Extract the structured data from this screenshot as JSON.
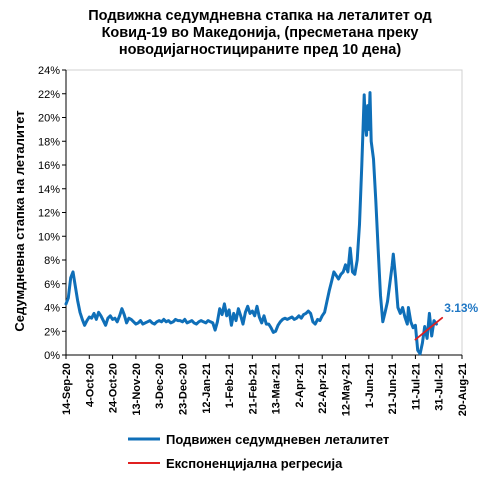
{
  "chart_data": {
    "type": "line",
    "title_lines": [
      "Подвижна седумдневна стапка на леталитет од",
      "Ковид-19 во Македонија, (пресметана преку",
      "новодијагностицираните пред 10 дена)"
    ],
    "xlabel": "",
    "ylabel": "Седумдневна стапка на леталитет",
    "x_range": [
      "2020-09-14",
      "2021-08-20"
    ],
    "x_ticks": [
      "14-Sep-20",
      "4-Oct-20",
      "24-Oct-20",
      "13-Nov-20",
      "3-Dec-20",
      "23-Dec-20",
      "12-Jan-21",
      "1-Feb-21",
      "21-Feb-21",
      "13-Mar-21",
      "2-Apr-21",
      "22-Apr-21",
      "12-May-21",
      "1-Jun-21",
      "21-Jun-21",
      "11-Jul-21",
      "31-Jul-21",
      "20-Aug-21"
    ],
    "y_ticks": [
      "0%",
      "2%",
      "4%",
      "6%",
      "8%",
      "10%",
      "12%",
      "14%",
      "16%",
      "18%",
      "20%",
      "22%",
      "24%"
    ],
    "ylim": [
      0,
      24
    ],
    "grid": false,
    "legend_position": "bottom",
    "colors": {
      "series": "#0f6fb8",
      "trend": "#e02020",
      "annotation": "#1f77c4"
    },
    "series": [
      {
        "name": "Подвижен седумдневен леталитет",
        "color": "#0f6fb8",
        "points": [
          [
            "2020-09-14",
            4.3
          ],
          [
            "2020-09-16",
            4.8
          ],
          [
            "2020-09-18",
            6.5
          ],
          [
            "2020-09-20",
            7.0
          ],
          [
            "2020-09-22",
            5.8
          ],
          [
            "2020-09-24",
            4.6
          ],
          [
            "2020-09-26",
            3.6
          ],
          [
            "2020-09-28",
            3.0
          ],
          [
            "2020-09-30",
            2.5
          ],
          [
            "2020-10-02",
            2.9
          ],
          [
            "2020-10-04",
            3.2
          ],
          [
            "2020-10-06",
            3.1
          ],
          [
            "2020-10-08",
            3.5
          ],
          [
            "2020-10-10",
            3.0
          ],
          [
            "2020-10-12",
            3.6
          ],
          [
            "2020-10-14",
            3.3
          ],
          [
            "2020-10-16",
            2.9
          ],
          [
            "2020-10-18",
            2.5
          ],
          [
            "2020-10-20",
            3.1
          ],
          [
            "2020-10-22",
            3.3
          ],
          [
            "2020-10-24",
            3.0
          ],
          [
            "2020-10-26",
            3.1
          ],
          [
            "2020-10-28",
            2.8
          ],
          [
            "2020-10-30",
            3.3
          ],
          [
            "2020-11-01",
            3.9
          ],
          [
            "2020-11-03",
            3.4
          ],
          [
            "2020-11-05",
            2.7
          ],
          [
            "2020-11-07",
            3.1
          ],
          [
            "2020-11-09",
            3.0
          ],
          [
            "2020-11-11",
            2.8
          ],
          [
            "2020-11-13",
            2.6
          ],
          [
            "2020-11-15",
            2.7
          ],
          [
            "2020-11-17",
            2.9
          ],
          [
            "2020-11-19",
            2.6
          ],
          [
            "2020-11-21",
            2.7
          ],
          [
            "2020-11-23",
            2.8
          ],
          [
            "2020-11-25",
            2.9
          ],
          [
            "2020-11-27",
            2.7
          ],
          [
            "2020-11-29",
            2.6
          ],
          [
            "2020-12-01",
            2.8
          ],
          [
            "2020-12-03",
            2.9
          ],
          [
            "2020-12-05",
            2.8
          ],
          [
            "2020-12-07",
            3.0
          ],
          [
            "2020-12-09",
            2.8
          ],
          [
            "2020-12-11",
            2.9
          ],
          [
            "2020-12-13",
            2.7
          ],
          [
            "2020-12-15",
            2.8
          ],
          [
            "2020-12-17",
            3.0
          ],
          [
            "2020-12-19",
            2.9
          ],
          [
            "2020-12-21",
            2.9
          ],
          [
            "2020-12-23",
            2.8
          ],
          [
            "2020-12-25",
            3.0
          ],
          [
            "2020-12-27",
            2.7
          ],
          [
            "2020-12-29",
            2.8
          ],
          [
            "2020-12-31",
            2.9
          ],
          [
            "2021-01-02",
            2.7
          ],
          [
            "2021-01-04",
            2.6
          ],
          [
            "2021-01-06",
            2.8
          ],
          [
            "2021-01-08",
            2.9
          ],
          [
            "2021-01-10",
            2.8
          ],
          [
            "2021-01-12",
            2.7
          ],
          [
            "2021-01-14",
            2.9
          ],
          [
            "2021-01-16",
            2.8
          ],
          [
            "2021-01-18",
            2.7
          ],
          [
            "2021-01-20",
            2.1
          ],
          [
            "2021-01-22",
            2.8
          ],
          [
            "2021-01-24",
            3.9
          ],
          [
            "2021-01-26",
            3.4
          ],
          [
            "2021-01-28",
            4.3
          ],
          [
            "2021-01-30",
            3.3
          ],
          [
            "2021-02-01",
            3.8
          ],
          [
            "2021-02-03",
            2.5
          ],
          [
            "2021-02-05",
            3.5
          ],
          [
            "2021-02-07",
            2.9
          ],
          [
            "2021-02-09",
            3.9
          ],
          [
            "2021-02-11",
            3.3
          ],
          [
            "2021-02-13",
            2.6
          ],
          [
            "2021-02-15",
            3.6
          ],
          [
            "2021-02-17",
            4.1
          ],
          [
            "2021-02-19",
            3.5
          ],
          [
            "2021-02-21",
            3.7
          ],
          [
            "2021-02-23",
            3.3
          ],
          [
            "2021-02-25",
            4.1
          ],
          [
            "2021-02-27",
            3.2
          ],
          [
            "2021-03-01",
            2.7
          ],
          [
            "2021-03-03",
            3.3
          ],
          [
            "2021-03-05",
            2.6
          ],
          [
            "2021-03-07",
            2.6
          ],
          [
            "2021-03-09",
            2.3
          ],
          [
            "2021-03-11",
            1.9
          ],
          [
            "2021-03-13",
            2.0
          ],
          [
            "2021-03-15",
            2.5
          ],
          [
            "2021-03-17",
            2.8
          ],
          [
            "2021-03-19",
            3.0
          ],
          [
            "2021-03-21",
            3.1
          ],
          [
            "2021-03-23",
            3.0
          ],
          [
            "2021-03-25",
            3.1
          ],
          [
            "2021-03-27",
            3.2
          ],
          [
            "2021-03-29",
            3.0
          ],
          [
            "2021-03-31",
            3.1
          ],
          [
            "2021-04-02",
            3.3
          ],
          [
            "2021-04-04",
            3.1
          ],
          [
            "2021-04-06",
            3.4
          ],
          [
            "2021-04-08",
            3.5
          ],
          [
            "2021-04-10",
            3.7
          ],
          [
            "2021-04-12",
            3.5
          ],
          [
            "2021-04-14",
            2.8
          ],
          [
            "2021-04-16",
            2.6
          ],
          [
            "2021-04-18",
            3.0
          ],
          [
            "2021-04-20",
            2.9
          ],
          [
            "2021-04-22",
            3.3
          ],
          [
            "2021-04-24",
            3.6
          ],
          [
            "2021-04-26",
            4.5
          ],
          [
            "2021-04-28",
            5.4
          ],
          [
            "2021-04-30",
            6.2
          ],
          [
            "2021-05-02",
            7.0
          ],
          [
            "2021-05-04",
            6.7
          ],
          [
            "2021-05-06",
            6.4
          ],
          [
            "2021-05-08",
            6.8
          ],
          [
            "2021-05-10",
            7.0
          ],
          [
            "2021-05-12",
            7.6
          ],
          [
            "2021-05-14",
            7.0
          ],
          [
            "2021-05-16",
            9.0
          ],
          [
            "2021-05-18",
            7.0
          ],
          [
            "2021-05-20",
            6.8
          ],
          [
            "2021-05-22",
            8.0
          ],
          [
            "2021-05-24",
            11.0
          ],
          [
            "2021-05-26",
            16.0
          ],
          [
            "2021-05-28",
            21.9
          ],
          [
            "2021-05-29",
            19.5
          ],
          [
            "2021-05-30",
            18.5
          ],
          [
            "2021-05-31",
            21.0
          ],
          [
            "2021-06-01",
            19.0
          ],
          [
            "2021-06-02",
            22.1
          ],
          [
            "2021-06-03",
            18.0
          ],
          [
            "2021-06-05",
            16.5
          ],
          [
            "2021-06-07",
            13.0
          ],
          [
            "2021-06-09",
            9.0
          ],
          [
            "2021-06-11",
            5.0
          ],
          [
            "2021-06-13",
            2.8
          ],
          [
            "2021-06-15",
            3.6
          ],
          [
            "2021-06-17",
            4.5
          ],
          [
            "2021-06-19",
            6.0
          ],
          [
            "2021-06-21",
            7.5
          ],
          [
            "2021-06-22",
            8.5
          ],
          [
            "2021-06-24",
            6.5
          ],
          [
            "2021-06-26",
            4.0
          ],
          [
            "2021-06-28",
            3.5
          ],
          [
            "2021-06-30",
            4.0
          ],
          [
            "2021-07-02",
            3.2
          ],
          [
            "2021-07-04",
            2.6
          ],
          [
            "2021-07-05",
            4.0
          ],
          [
            "2021-07-07",
            2.8
          ],
          [
            "2021-07-09",
            2.3
          ],
          [
            "2021-07-11",
            2.5
          ],
          [
            "2021-07-13",
            0.4
          ],
          [
            "2021-07-15",
            0.1
          ],
          [
            "2021-07-17",
            1.0
          ],
          [
            "2021-07-19",
            2.4
          ],
          [
            "2021-07-21",
            1.4
          ],
          [
            "2021-07-23",
            3.5
          ],
          [
            "2021-07-25",
            1.6
          ],
          [
            "2021-07-27",
            2.9
          ],
          [
            "2021-07-29",
            2.6
          ]
        ]
      },
      {
        "name": "Експоненцијална регресија",
        "color": "#e02020",
        "points": [
          [
            "2021-07-11",
            1.3
          ],
          [
            "2021-08-03",
            3.13
          ]
        ]
      }
    ],
    "annotations": [
      {
        "text": "3.13%",
        "x": "2021-08-03",
        "y": 3.13
      }
    ]
  }
}
